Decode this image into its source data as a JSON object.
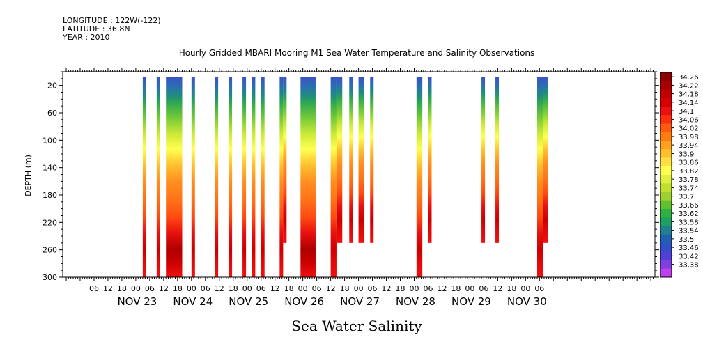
{
  "header": {
    "longitude": "LONGITUDE : 122W(-122)",
    "latitude": "LATITUDE : 36.8N",
    "year": "YEAR : 2010"
  },
  "chart_data": {
    "type": "heatmap",
    "title": "Hourly Gridded MBARI Mooring M1 Sea Water Temperature and Salinity Observations",
    "xlabel": "Sea Water Salinity",
    "ylabel": "DEPTH (m)",
    "ylim": [
      300,
      0
    ],
    "y_ticks": [
      20,
      60,
      100,
      140,
      180,
      220,
      260,
      300
    ],
    "x_hour_labels": [
      "06",
      "12",
      "18",
      "00",
      "06",
      "12",
      "18",
      "00",
      "06",
      "12",
      "18",
      "00",
      "06",
      "12",
      "18",
      "00",
      "06",
      "12",
      "18",
      "00",
      "06",
      "12",
      "18",
      "00",
      "06",
      "12",
      "18",
      "00",
      "06",
      "12",
      "18",
      "00",
      "06"
    ],
    "day_labels": [
      "NOV 23",
      "NOV 24",
      "NOV 25",
      "NOV 26",
      "NOV 27",
      "NOV 28",
      "NOV 29",
      "NOV 30"
    ],
    "colorbar_levels": [
      "34.26",
      "34.22",
      "34.18",
      "34.14",
      "34.1",
      "34.06",
      "34.02",
      "33.98",
      "33.94",
      "33.9",
      "33.86",
      "33.82",
      "33.78",
      "33.74",
      "33.7",
      "33.66",
      "33.62",
      "33.58",
      "33.54",
      "33.5",
      "33.46",
      "33.42",
      "33.38"
    ],
    "colorbar_colors": [
      "#8b0000",
      "#a80000",
      "#c00000",
      "#d80000",
      "#ee1010",
      "#ff3010",
      "#ff5a10",
      "#ff7d10",
      "#ffa020",
      "#ffc030",
      "#ffe040",
      "#ffff50",
      "#e0f040",
      "#c0e030",
      "#a0d030",
      "#60c030",
      "#30b040",
      "#20a060",
      "#208090",
      "#2060b0",
      "#3050c8",
      "#5040d8",
      "#8040e0",
      "#c040f0"
    ],
    "columns": [
      {
        "start_hour": 33,
        "width_hours": 1.5,
        "max_depth": 300,
        "peak_salinity": 34.12
      },
      {
        "start_hour": 39,
        "width_hours": 1.5,
        "max_depth": 300,
        "peak_salinity": 34.14
      },
      {
        "start_hour": 43,
        "width_hours": 7,
        "max_depth": 300,
        "peak_salinity": 34.22
      },
      {
        "start_hour": 54,
        "width_hours": 1.5,
        "max_depth": 300,
        "peak_salinity": 34.14
      },
      {
        "start_hour": 64,
        "width_hours": 1.5,
        "max_depth": 300,
        "peak_salinity": 34.14
      },
      {
        "start_hour": 70,
        "width_hours": 1.5,
        "max_depth": 300,
        "peak_salinity": 34.14
      },
      {
        "start_hour": 76,
        "width_hours": 1.5,
        "max_depth": 300,
        "peak_salinity": 34.14
      },
      {
        "start_hour": 80,
        "width_hours": 1.5,
        "max_depth": 300,
        "peak_salinity": 34.14
      },
      {
        "start_hour": 84,
        "width_hours": 1.5,
        "max_depth": 300,
        "peak_salinity": 34.14
      },
      {
        "start_hour": 92,
        "width_hours": 1.5,
        "max_depth": 300,
        "peak_salinity": 34.14
      },
      {
        "start_hour": 93.5,
        "width_hours": 1.5,
        "max_depth": 250,
        "peak_salinity": 34.14
      },
      {
        "start_hour": 101,
        "width_hours": 6.5,
        "max_depth": 300,
        "peak_salinity": 34.22
      },
      {
        "start_hour": 114,
        "width_hours": 2.5,
        "max_depth": 300,
        "peak_salinity": 34.14
      },
      {
        "start_hour": 116.5,
        "width_hours": 2.5,
        "max_depth": 250,
        "peak_salinity": 34.14
      },
      {
        "start_hour": 122,
        "width_hours": 1.5,
        "max_depth": 250,
        "peak_salinity": 34.14
      },
      {
        "start_hour": 126,
        "width_hours": 2.5,
        "max_depth": 250,
        "peak_salinity": 34.14
      },
      {
        "start_hour": 131,
        "width_hours": 1.5,
        "max_depth": 250,
        "peak_salinity": 34.14
      },
      {
        "start_hour": 151,
        "width_hours": 2.5,
        "max_depth": 300,
        "peak_salinity": 34.14
      },
      {
        "start_hour": 156,
        "width_hours": 1.5,
        "max_depth": 250,
        "peak_salinity": 34.14
      },
      {
        "start_hour": 179,
        "width_hours": 1.5,
        "max_depth": 250,
        "peak_salinity": 34.14
      },
      {
        "start_hour": 185,
        "width_hours": 1.5,
        "max_depth": 250,
        "peak_salinity": 34.14
      },
      {
        "start_hour": 203,
        "width_hours": 2.5,
        "max_depth": 300,
        "peak_salinity": 34.18
      },
      {
        "start_hour": 205.5,
        "width_hours": 2,
        "max_depth": 250,
        "peak_salinity": 34.18
      }
    ]
  }
}
